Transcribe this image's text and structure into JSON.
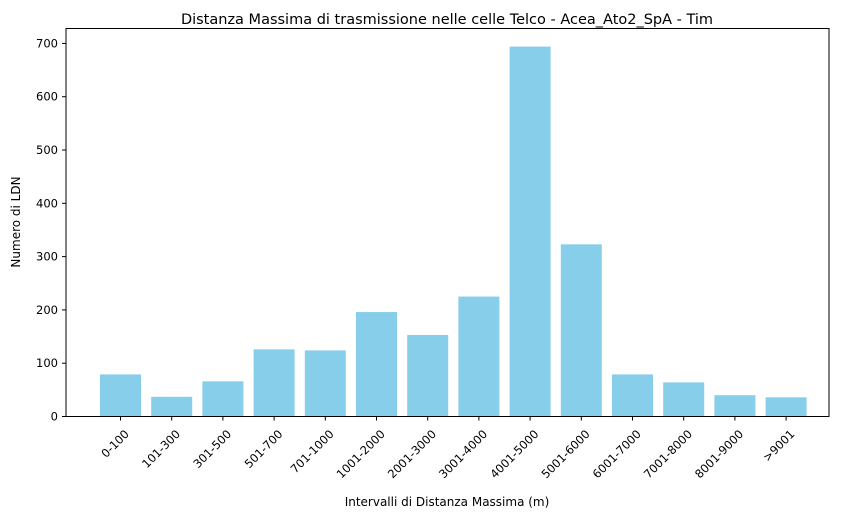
{
  "chart_data": {
    "type": "bar",
    "title": "Distanza Massima di trasmissione nelle celle Telco  - Acea_Ato2_SpA - Tim",
    "xlabel": "Intervalli di Distanza Massima (m)",
    "ylabel": "Numero di LDN",
    "categories": [
      "0-100",
      "101-300",
      "301-500",
      "501-700",
      "701-1000",
      "1001-2000",
      "2001-3000",
      "3001-4000",
      "4001-5000",
      "5001-6000",
      "6001-7000",
      "7001-8000",
      "8001-9000",
      ">9001"
    ],
    "values": [
      79,
      37,
      66,
      126,
      124,
      196,
      153,
      225,
      694,
      323,
      79,
      64,
      40,
      36
    ],
    "ylim": [
      0,
      728
    ],
    "yticks": [
      0,
      100,
      200,
      300,
      400,
      500,
      600,
      700
    ],
    "bar_color": "#87ceeb",
    "grid": false,
    "legend": "none"
  }
}
